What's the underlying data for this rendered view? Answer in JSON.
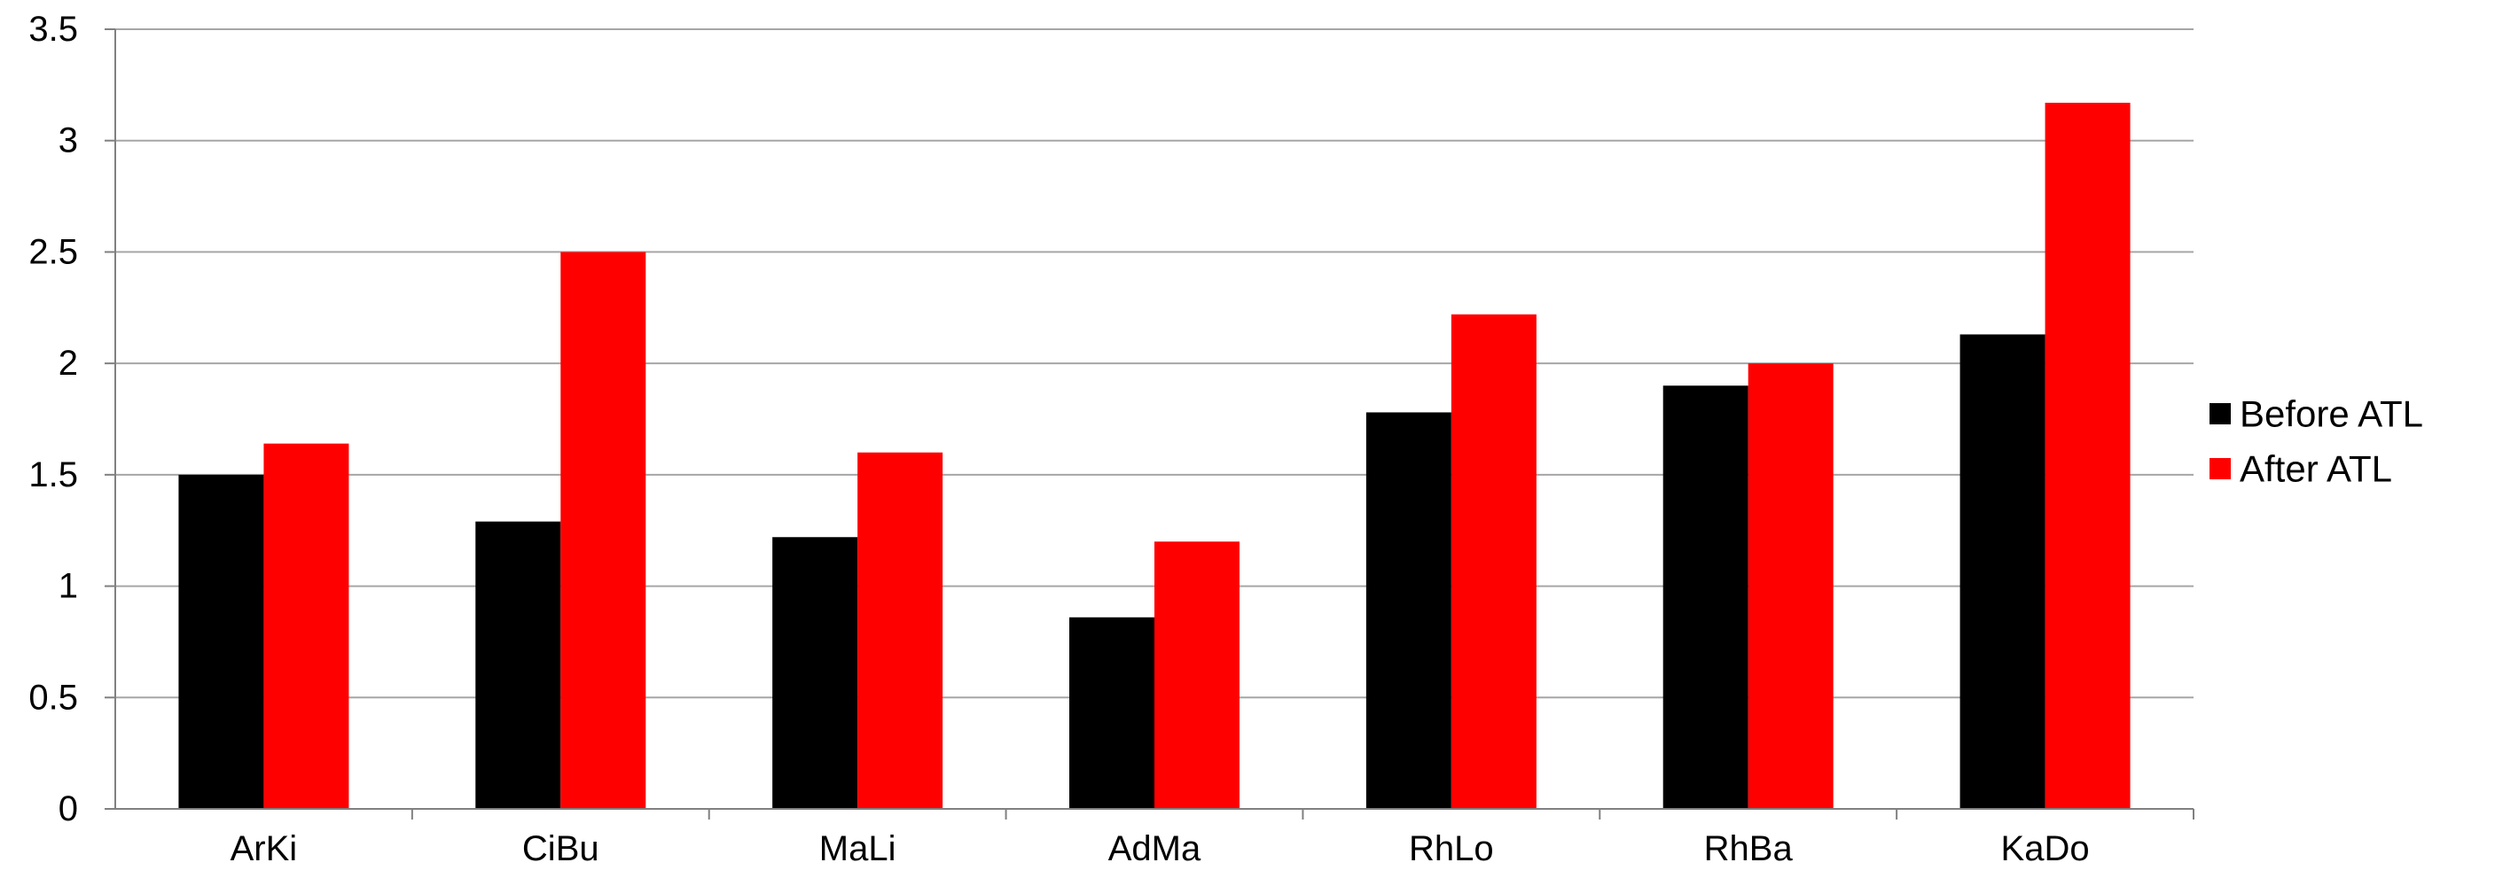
{
  "chart_data": {
    "type": "bar",
    "categories": [
      "ArKi",
      "CiBu",
      "MaLi",
      "AdMa",
      "RhLo",
      "RhBa",
      "KaDo"
    ],
    "series": [
      {
        "name": "Before ATL",
        "color": "#000000",
        "values": [
          1.5,
          1.29,
          1.22,
          0.86,
          1.78,
          1.9,
          2.13
        ]
      },
      {
        "name": "After ATL",
        "color": "#ff0000",
        "values": [
          1.64,
          2.5,
          1.6,
          1.2,
          2.22,
          2.0,
          3.17
        ]
      }
    ],
    "title": "",
    "xlabel": "",
    "ylabel": "",
    "ylim": [
      0,
      3.5
    ],
    "yticks": [
      "0",
      "0.5",
      "1",
      "1.5",
      "2",
      "2.5",
      "3",
      "3.5"
    ],
    "grid": true,
    "legend_position": "right"
  }
}
